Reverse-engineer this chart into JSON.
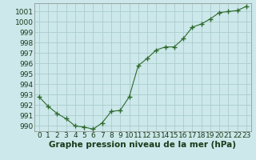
{
  "x": [
    0,
    1,
    2,
    3,
    4,
    5,
    6,
    7,
    8,
    9,
    10,
    11,
    12,
    13,
    14,
    15,
    16,
    17,
    18,
    19,
    20,
    21,
    22,
    23
  ],
  "y": [
    992.8,
    991.9,
    991.2,
    990.7,
    990.0,
    989.9,
    989.7,
    990.3,
    991.4,
    991.5,
    992.8,
    995.8,
    996.5,
    997.3,
    997.6,
    997.6,
    998.4,
    999.5,
    999.8,
    1000.3,
    1000.9,
    1001.0,
    1001.1,
    1001.5
  ],
  "line_color": "#2d6a2d",
  "marker": "+",
  "bg_color": "#cce8ea",
  "grid_color": "#aacccc",
  "xlabel": "Graphe pression niveau de la mer (hPa)",
  "xlabel_fontsize": 7.5,
  "tick_fontsize": 6.5,
  "ylim": [
    989.5,
    1001.8
  ],
  "xlim": [
    -0.5,
    23.5
  ],
  "yticks": [
    990,
    991,
    992,
    993,
    994,
    995,
    996,
    997,
    998,
    999,
    1000,
    1001
  ],
  "xticks": [
    0,
    1,
    2,
    3,
    4,
    5,
    6,
    7,
    8,
    9,
    10,
    11,
    12,
    13,
    14,
    15,
    16,
    17,
    18,
    19,
    20,
    21,
    22,
    23
  ]
}
